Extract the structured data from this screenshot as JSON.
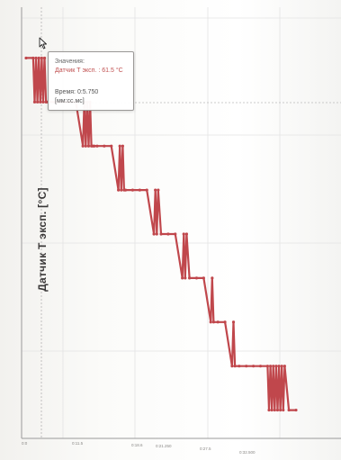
{
  "ylabel": "Датчик Т эксп. [°C]",
  "tooltip": {
    "title": "Значения:",
    "value_line": "Датчик Т эксп. : 61.5 °C",
    "time_line": "Время: 0:5.750 [мм:сс.мс]"
  },
  "colors": {
    "series": "#c0474c",
    "grid": "#e3e3e3",
    "axis": "#9a9a9a"
  },
  "chart_data": {
    "type": "line",
    "title": "",
    "xlabel": "",
    "ylabel": "Датчик Т эксп. [°C]",
    "series": [
      {
        "x": [
          0,
          1,
          1.2,
          1.4,
          1.6,
          1.8,
          2.0,
          2.2,
          2.4,
          2.6,
          2.8,
          3.0,
          4,
          6,
          7,
          8,
          8.2,
          8.4,
          8.6,
          8.8,
          9.0,
          9.2,
          9.4,
          9.6,
          10,
          11,
          12,
          13,
          13.2,
          13.4,
          13.6,
          13.8,
          14,
          15,
          16,
          17,
          18,
          18.2,
          18.4,
          18.6,
          19,
          20,
          21,
          22,
          22.2,
          22.4,
          22.6,
          23,
          24,
          25,
          26,
          26.2,
          26.4,
          27,
          28,
          29,
          29.2,
          29.4,
          30,
          31,
          32,
          33,
          34,
          34.2,
          34.4,
          34.6,
          34.8,
          35,
          35.2,
          35.4,
          35.6,
          35.8,
          36,
          36.2,
          36.4,
          37,
          38
        ],
        "y": [
          61.5,
          61.5,
          61.0,
          61.5,
          61.0,
          61.5,
          61.0,
          61.5,
          61.0,
          61.5,
          61.0,
          61.0,
          61.0,
          61.0,
          61.0,
          60.5,
          61.0,
          60.5,
          61.0,
          60.5,
          61.0,
          60.5,
          60.5,
          60.5,
          60.5,
          60.5,
          60.5,
          60.0,
          60.5,
          60.0,
          60.5,
          60.0,
          60.0,
          60.0,
          60.0,
          60.0,
          59.5,
          60.0,
          59.5,
          60.0,
          59.5,
          59.5,
          59.5,
          59.0,
          59.5,
          59.0,
          59.5,
          59.0,
          59.0,
          59.0,
          58.5,
          59.0,
          58.5,
          58.5,
          58.5,
          58.0,
          58.5,
          58.0,
          58.0,
          58.0,
          58.0,
          58.0,
          58.0,
          57.5,
          58.0,
          57.5,
          58.0,
          57.5,
          58.0,
          57.5,
          58.0,
          57.5,
          58.0,
          57.5,
          58.0,
          57.5,
          57.5
        ]
      }
    ],
    "grid": true,
    "tick_labels": [
      "0:0",
      "0:11.5",
      "0:18.6",
      "0:21.250",
      "0:27.5",
      "0:32.500"
    ]
  }
}
